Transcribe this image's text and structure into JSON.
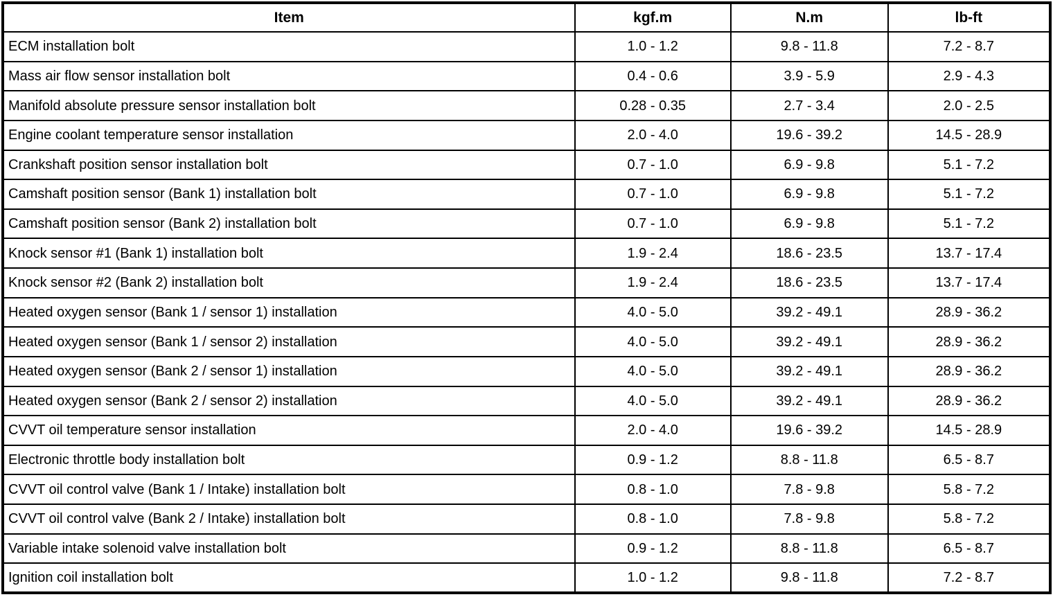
{
  "table": {
    "name": "tightening-torque-specifications",
    "columns": {
      "item": "Item",
      "kgfm": "kgf.m",
      "nm": "N.m",
      "lbft": "lb-ft"
    },
    "rows": [
      {
        "item": "ECM installation bolt",
        "kgfm": "1.0 - 1.2",
        "nm": "9.8 - 11.8",
        "lbft": "7.2 - 8.7"
      },
      {
        "item": "Mass air flow sensor installation bolt",
        "kgfm": "0.4 - 0.6",
        "nm": "3.9 - 5.9",
        "lbft": "2.9 - 4.3"
      },
      {
        "item": "Manifold absolute pressure sensor installation bolt",
        "kgfm": "0.28 - 0.35",
        "nm": "2.7 - 3.4",
        "lbft": "2.0 - 2.5"
      },
      {
        "item": "Engine coolant temperature sensor installation",
        "kgfm": "2.0 - 4.0",
        "nm": "19.6 - 39.2",
        "lbft": "14.5 - 28.9"
      },
      {
        "item": "Crankshaft position sensor installation bolt",
        "kgfm": "0.7 - 1.0",
        "nm": "6.9 - 9.8",
        "lbft": "5.1 - 7.2"
      },
      {
        "item": "Camshaft position sensor (Bank 1) installation bolt",
        "kgfm": "0.7 - 1.0",
        "nm": "6.9 - 9.8",
        "lbft": "5.1 - 7.2"
      },
      {
        "item": "Camshaft position sensor (Bank 2) installation bolt",
        "kgfm": "0.7 - 1.0",
        "nm": "6.9 - 9.8",
        "lbft": "5.1 - 7.2"
      },
      {
        "item": "Knock sensor #1 (Bank 1) installation bolt",
        "kgfm": "1.9 - 2.4",
        "nm": "18.6 - 23.5",
        "lbft": "13.7 - 17.4"
      },
      {
        "item": "Knock sensor #2 (Bank 2) installation bolt",
        "kgfm": "1.9 - 2.4",
        "nm": "18.6 - 23.5",
        "lbft": "13.7 - 17.4"
      },
      {
        "item": "Heated oxygen sensor (Bank 1 / sensor 1) installation",
        "kgfm": "4.0 - 5.0",
        "nm": "39.2 - 49.1",
        "lbft": "28.9 - 36.2"
      },
      {
        "item": "Heated oxygen sensor (Bank 1 / sensor 2) installation",
        "kgfm": "4.0 - 5.0",
        "nm": "39.2 - 49.1",
        "lbft": "28.9 - 36.2"
      },
      {
        "item": "Heated oxygen sensor (Bank 2 / sensor 1) installation",
        "kgfm": "4.0 - 5.0",
        "nm": "39.2 - 49.1",
        "lbft": "28.9 - 36.2"
      },
      {
        "item": "Heated oxygen sensor (Bank 2 / sensor 2) installation",
        "kgfm": "4.0 - 5.0",
        "nm": "39.2 - 49.1",
        "lbft": "28.9 - 36.2"
      },
      {
        "item": "CVVT oil temperature sensor installation",
        "kgfm": "2.0 - 4.0",
        "nm": "19.6 - 39.2",
        "lbft": "14.5 - 28.9"
      },
      {
        "item": "Electronic throttle body installation bolt",
        "kgfm": "0.9 - 1.2",
        "nm": "8.8 - 11.8",
        "lbft": "6.5 - 8.7"
      },
      {
        "item": "CVVT oil control valve (Bank 1 / Intake) installation bolt",
        "kgfm": "0.8 - 1.0",
        "nm": "7.8 - 9.8",
        "lbft": "5.8 - 7.2"
      },
      {
        "item": "CVVT oil control valve (Bank 2 / Intake) installation bolt",
        "kgfm": "0.8 - 1.0",
        "nm": "7.8 - 9.8",
        "lbft": "5.8 - 7.2"
      },
      {
        "item": "Variable intake solenoid valve installation bolt",
        "kgfm": "0.9 - 1.2",
        "nm": "8.8 - 11.8",
        "lbft": "6.5 - 8.7"
      },
      {
        "item": "Ignition coil installation bolt",
        "kgfm": "1.0 - 1.2",
        "nm": "9.8 - 11.8",
        "lbft": "7.2 - 8.7"
      }
    ],
    "colors": {
      "border": "#000000",
      "background": "#ffffff",
      "text": "#000000"
    }
  }
}
